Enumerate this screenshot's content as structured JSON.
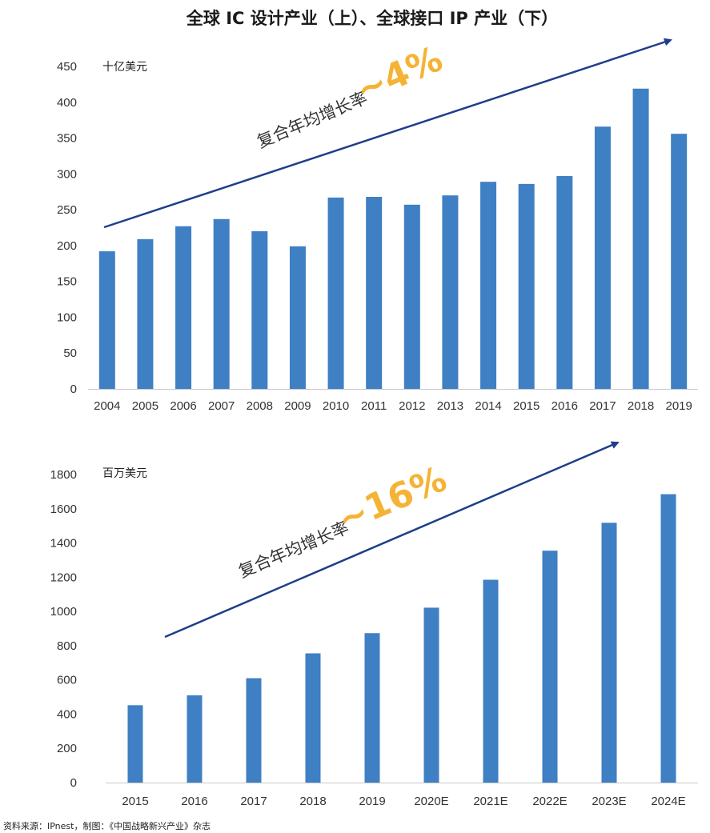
{
  "title": "全球 IC 设计产业（上）、全球接口 IP 产业（下）",
  "source": "资料来源：IPnest，制图：《中国战略新兴产业》杂志",
  "colors": {
    "bar": "#3f7fc3",
    "arrow": "#1f3e8a",
    "cagr": "#f5b335",
    "axis": "#c8c8c8"
  },
  "chart_data": [
    {
      "type": "bar",
      "title": "全球 IC 设计产业",
      "unit_label": "十亿美元",
      "categories": [
        "2004",
        "2005",
        "2006",
        "2007",
        "2008",
        "2009",
        "2010",
        "2011",
        "2012",
        "2013",
        "2014",
        "2015",
        "2016",
        "2017",
        "2018",
        "2019"
      ],
      "values": [
        192,
        209,
        227,
        237,
        220,
        199,
        267,
        268,
        257,
        270,
        289,
        286,
        297,
        366,
        419,
        356
      ],
      "ylim": [
        0,
        450
      ],
      "yticks": [
        0,
        50,
        100,
        150,
        200,
        250,
        300,
        350,
        400,
        450
      ],
      "annotation": {
        "label": "复合年均增长率",
        "value": "~4%"
      }
    },
    {
      "type": "bar",
      "title": "全球接口 IP 产业",
      "unit_label": "百万美元",
      "categories": [
        "2015",
        "2016",
        "2017",
        "2018",
        "2019",
        "2020E",
        "2021E",
        "2022E",
        "2023E",
        "2024E"
      ],
      "values": [
        452,
        510,
        610,
        755,
        873,
        1022,
        1185,
        1355,
        1518,
        1685
      ],
      "ylim": [
        0,
        1800
      ],
      "yticks": [
        0,
        200,
        400,
        600,
        800,
        1000,
        1200,
        1400,
        1600,
        1800
      ],
      "annotation": {
        "label": "复合年均增长率",
        "value": "~16%"
      }
    }
  ]
}
